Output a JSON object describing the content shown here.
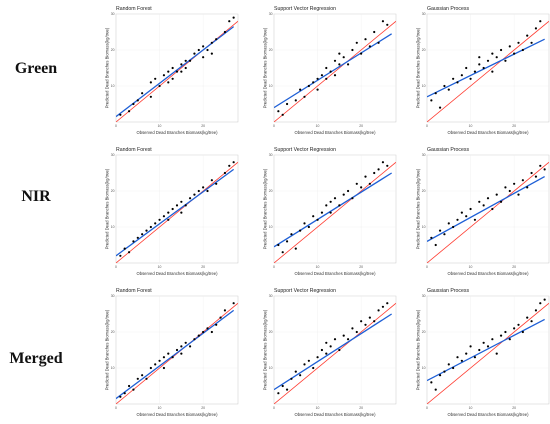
{
  "row_labels": [
    "Green",
    "NIR",
    "Merged"
  ],
  "colors": {
    "one_to_one_line": "#ff3b30",
    "fit_line": "#1e5fd6",
    "points": "#000000",
    "panel_background": "#ffffff"
  },
  "chart_data": [
    {
      "type": "scatter",
      "row": "Green",
      "title": "Random Forest",
      "xlabel": "Observed Dead Branches Biomass(kg/tree)",
      "ylabel": "Predicted Dead Branches Biomass(kg/tree)",
      "xticks": [
        "0",
        "10",
        "20"
      ],
      "yticks": [
        "10",
        "20",
        "30"
      ],
      "xlim": [
        0,
        28
      ],
      "ylim": [
        0,
        30
      ],
      "points": [
        [
          1,
          2
        ],
        [
          3,
          3
        ],
        [
          4,
          5
        ],
        [
          5,
          6
        ],
        [
          6,
          8
        ],
        [
          8,
          7
        ],
        [
          8,
          11
        ],
        [
          9,
          12
        ],
        [
          10,
          10
        ],
        [
          11,
          13
        ],
        [
          12,
          11
        ],
        [
          12,
          14
        ],
        [
          13,
          12
        ],
        [
          13,
          15
        ],
        [
          14,
          14
        ],
        [
          15,
          16
        ],
        [
          15,
          14
        ],
        [
          16,
          17
        ],
        [
          16,
          15
        ],
        [
          17,
          17
        ],
        [
          18,
          19
        ],
        [
          19,
          20
        ],
        [
          20,
          18
        ],
        [
          20,
          21
        ],
        [
          21,
          20
        ],
        [
          22,
          22
        ],
        [
          22,
          19
        ],
        [
          23,
          23
        ],
        [
          25,
          25
        ],
        [
          26,
          28
        ],
        [
          27,
          29
        ]
      ],
      "fit_line": [
        [
          0,
          1.5
        ],
        [
          27,
          26.5
        ]
      ],
      "one_to_one": [
        [
          0,
          0
        ],
        [
          28,
          28
        ]
      ]
    },
    {
      "type": "scatter",
      "row": "Green",
      "title": "Support Vector Regression",
      "xlabel": "Observed Dead Branches Biomass(kg/tree)",
      "ylabel": "Predicted Dead Branches Biomass(kg/tree)",
      "xticks": [
        "0",
        "10",
        "20"
      ],
      "yticks": [
        "10",
        "20",
        "30"
      ],
      "xlim": [
        0,
        28
      ],
      "ylim": [
        0,
        30
      ],
      "points": [
        [
          1,
          3
        ],
        [
          2,
          2
        ],
        [
          3,
          5
        ],
        [
          5,
          6
        ],
        [
          6,
          9
        ],
        [
          7,
          7
        ],
        [
          8,
          10
        ],
        [
          9,
          11
        ],
        [
          10,
          12
        ],
        [
          10,
          9
        ],
        [
          11,
          13
        ],
        [
          12,
          15
        ],
        [
          12,
          12
        ],
        [
          13,
          14
        ],
        [
          14,
          17
        ],
        [
          14,
          13
        ],
        [
          15,
          16
        ],
        [
          15,
          19
        ],
        [
          16,
          18
        ],
        [
          17,
          16
        ],
        [
          18,
          20
        ],
        [
          19,
          22
        ],
        [
          20,
          19
        ],
        [
          21,
          23
        ],
        [
          22,
          21
        ],
        [
          23,
          25
        ],
        [
          24,
          22
        ],
        [
          25,
          28
        ],
        [
          26,
          27
        ]
      ],
      "fit_line": [
        [
          0,
          4
        ],
        [
          27,
          24.5
        ]
      ],
      "one_to_one": [
        [
          0,
          0
        ],
        [
          28,
          28
        ]
      ]
    },
    {
      "type": "scatter",
      "row": "Green",
      "title": "Gaussian Process",
      "xlabel": "Observed Dead Branches Biomass(kg/tree)",
      "ylabel": "Predicted Dead Branches Biomass(kg/tree)",
      "xticks": [
        "0",
        "10",
        "20"
      ],
      "yticks": [
        "10",
        "20",
        "30"
      ],
      "xlim": [
        0,
        28
      ],
      "ylim": [
        0,
        30
      ],
      "points": [
        [
          1,
          6
        ],
        [
          2,
          8
        ],
        [
          3,
          4
        ],
        [
          4,
          10
        ],
        [
          5,
          9
        ],
        [
          6,
          12
        ],
        [
          7,
          11
        ],
        [
          8,
          13
        ],
        [
          9,
          15
        ],
        [
          10,
          12
        ],
        [
          11,
          14
        ],
        [
          12,
          16
        ],
        [
          12,
          18
        ],
        [
          13,
          15
        ],
        [
          14,
          17
        ],
        [
          15,
          19
        ],
        [
          15,
          14
        ],
        [
          16,
          18
        ],
        [
          17,
          20
        ],
        [
          18,
          17
        ],
        [
          19,
          21
        ],
        [
          20,
          19
        ],
        [
          21,
          22
        ],
        [
          22,
          20
        ],
        [
          23,
          24
        ],
        [
          24,
          22
        ],
        [
          25,
          26
        ],
        [
          26,
          28
        ]
      ],
      "fit_line": [
        [
          0,
          7
        ],
        [
          27,
          23
        ]
      ],
      "one_to_one": [
        [
          0,
          0
        ],
        [
          28,
          28
        ]
      ]
    },
    {
      "type": "scatter",
      "row": "NIR",
      "title": "Random Forest",
      "xlabel": "Observed Dead Branches Biomass(kg/tree)",
      "ylabel": "Predicted Dead Branches Biomass(kg/tree)",
      "xticks": [
        "0",
        "10",
        "20"
      ],
      "yticks": [
        "10",
        "20",
        "30"
      ],
      "xlim": [
        0,
        28
      ],
      "ylim": [
        0,
        30
      ],
      "points": [
        [
          1,
          2
        ],
        [
          2,
          4
        ],
        [
          3,
          3
        ],
        [
          4,
          6
        ],
        [
          5,
          7
        ],
        [
          6,
          8
        ],
        [
          7,
          9
        ],
        [
          8,
          10
        ],
        [
          9,
          11
        ],
        [
          10,
          12
        ],
        [
          11,
          13
        ],
        [
          12,
          12
        ],
        [
          12,
          14
        ],
        [
          13,
          15
        ],
        [
          14,
          16
        ],
        [
          15,
          14
        ],
        [
          15,
          17
        ],
        [
          16,
          16
        ],
        [
          17,
          18
        ],
        [
          18,
          19
        ],
        [
          19,
          20
        ],
        [
          20,
          21
        ],
        [
          21,
          20
        ],
        [
          22,
          23
        ],
        [
          23,
          22
        ],
        [
          25,
          25
        ],
        [
          26,
          27
        ],
        [
          27,
          28
        ]
      ],
      "fit_line": [
        [
          0,
          2
        ],
        [
          27,
          26
        ]
      ],
      "one_to_one": [
        [
          0,
          0
        ],
        [
          28,
          28
        ]
      ]
    },
    {
      "type": "scatter",
      "row": "NIR",
      "title": "Support Vector Regression",
      "xlabel": "Observed Dead Branches Biomass(kg/tree)",
      "ylabel": "Predicted Dead Branches Biomass(kg/tree)",
      "xticks": [
        "0",
        "10",
        "20"
      ],
      "yticks": [
        "10",
        "20",
        "30"
      ],
      "xlim": [
        0,
        28
      ],
      "ylim": [
        0,
        30
      ],
      "points": [
        [
          1,
          5
        ],
        [
          2,
          3
        ],
        [
          3,
          6
        ],
        [
          4,
          8
        ],
        [
          5,
          4
        ],
        [
          6,
          9
        ],
        [
          7,
          11
        ],
        [
          8,
          10
        ],
        [
          9,
          13
        ],
        [
          10,
          12
        ],
        [
          11,
          14
        ],
        [
          12,
          16
        ],
        [
          13,
          14
        ],
        [
          13,
          17
        ],
        [
          14,
          18
        ],
        [
          15,
          16
        ],
        [
          16,
          19
        ],
        [
          17,
          20
        ],
        [
          18,
          18
        ],
        [
          19,
          22
        ],
        [
          20,
          21
        ],
        [
          21,
          24
        ],
        [
          22,
          22
        ],
        [
          23,
          25
        ],
        [
          24,
          26
        ],
        [
          25,
          28
        ],
        [
          26,
          27
        ]
      ],
      "fit_line": [
        [
          0,
          4.5
        ],
        [
          27,
          25
        ]
      ],
      "one_to_one": [
        [
          0,
          0
        ],
        [
          28,
          28
        ]
      ]
    },
    {
      "type": "scatter",
      "row": "NIR",
      "title": "Gaussian Process",
      "xlabel": "Observed Dead Branches Biomass(kg/tree)",
      "ylabel": "Predicted Dead Branches Biomass(kg/tree)",
      "xticks": [
        "0",
        "10",
        "20"
      ],
      "yticks": [
        "10",
        "20",
        "30"
      ],
      "xlim": [
        0,
        28
      ],
      "ylim": [
        0,
        30
      ],
      "points": [
        [
          1,
          7
        ],
        [
          2,
          5
        ],
        [
          3,
          9
        ],
        [
          4,
          8
        ],
        [
          5,
          11
        ],
        [
          6,
          10
        ],
        [
          7,
          12
        ],
        [
          8,
          14
        ],
        [
          9,
          13
        ],
        [
          10,
          15
        ],
        [
          11,
          12
        ],
        [
          12,
          17
        ],
        [
          13,
          16
        ],
        [
          14,
          18
        ],
        [
          15,
          15
        ],
        [
          16,
          19
        ],
        [
          17,
          17
        ],
        [
          18,
          21
        ],
        [
          19,
          20
        ],
        [
          20,
          22
        ],
        [
          21,
          19
        ],
        [
          22,
          23
        ],
        [
          23,
          21
        ],
        [
          24,
          25
        ],
        [
          25,
          24
        ],
        [
          26,
          27
        ],
        [
          27,
          26
        ]
      ],
      "fit_line": [
        [
          0,
          6
        ],
        [
          27,
          24
        ]
      ],
      "one_to_one": [
        [
          0,
          0
        ],
        [
          28,
          28
        ]
      ]
    },
    {
      "type": "scatter",
      "row": "Merged",
      "title": "Random Forest",
      "xlabel": "Observed Dead Branches Biomass(kg/tree)",
      "ylabel": "Predicted Dead Branches Biomass(kg/tree)",
      "xticks": [
        "0",
        "10",
        "20"
      ],
      "yticks": [
        "10",
        "20",
        "30"
      ],
      "xlim": [
        0,
        28
      ],
      "ylim": [
        0,
        30
      ],
      "points": [
        [
          1,
          2
        ],
        [
          2,
          3
        ],
        [
          3,
          5
        ],
        [
          4,
          4
        ],
        [
          5,
          7
        ],
        [
          6,
          8
        ],
        [
          7,
          7
        ],
        [
          8,
          10
        ],
        [
          9,
          11
        ],
        [
          10,
          12
        ],
        [
          11,
          10
        ],
        [
          11,
          13
        ],
        [
          12,
          14
        ],
        [
          13,
          13
        ],
        [
          14,
          15
        ],
        [
          15,
          16
        ],
        [
          15,
          14
        ],
        [
          16,
          17
        ],
        [
          17,
          16
        ],
        [
          18,
          18
        ],
        [
          19,
          19
        ],
        [
          20,
          20
        ],
        [
          21,
          21
        ],
        [
          22,
          20
        ],
        [
          23,
          22
        ],
        [
          24,
          24
        ],
        [
          25,
          26
        ],
        [
          27,
          28
        ]
      ],
      "fit_line": [
        [
          0,
          1.5
        ],
        [
          27,
          26
        ]
      ],
      "one_to_one": [
        [
          0,
          0
        ],
        [
          28,
          28
        ]
      ]
    },
    {
      "type": "scatter",
      "row": "Merged",
      "title": "Support Vector Regression",
      "xlabel": "Observed Dead Branches Biomass(kg/tree)",
      "ylabel": "Predicted Dead Branches Biomass(kg/tree)",
      "xticks": [
        "0",
        "10",
        "20"
      ],
      "yticks": [
        "10",
        "20",
        "30"
      ],
      "xlim": [
        0,
        28
      ],
      "ylim": [
        0,
        30
      ],
      "points": [
        [
          1,
          3
        ],
        [
          2,
          5
        ],
        [
          3,
          4
        ],
        [
          4,
          7
        ],
        [
          5,
          9
        ],
        [
          6,
          8
        ],
        [
          7,
          11
        ],
        [
          8,
          12
        ],
        [
          9,
          10
        ],
        [
          10,
          13
        ],
        [
          11,
          15
        ],
        [
          12,
          14
        ],
        [
          12,
          17
        ],
        [
          13,
          16
        ],
        [
          14,
          18
        ],
        [
          15,
          15
        ],
        [
          16,
          19
        ],
        [
          17,
          18
        ],
        [
          18,
          21
        ],
        [
          19,
          20
        ],
        [
          20,
          23
        ],
        [
          21,
          22
        ],
        [
          22,
          24
        ],
        [
          23,
          23
        ],
        [
          24,
          26
        ],
        [
          25,
          27
        ],
        [
          26,
          28
        ]
      ],
      "fit_line": [
        [
          0,
          4
        ],
        [
          27,
          25
        ]
      ],
      "one_to_one": [
        [
          0,
          0
        ],
        [
          28,
          28
        ]
      ]
    },
    {
      "type": "scatter",
      "row": "Merged",
      "title": "Gaussian Process",
      "xlabel": "Observed Dead Branches Biomass(kg/tree)",
      "ylabel": "Predicted Dead Branches Biomass(kg/tree)",
      "xticks": [
        "0",
        "10",
        "20"
      ],
      "yticks": [
        "10",
        "20",
        "30"
      ],
      "xlim": [
        0,
        28
      ],
      "ylim": [
        0,
        30
      ],
      "points": [
        [
          1,
          6
        ],
        [
          2,
          4
        ],
        [
          3,
          8
        ],
        [
          4,
          9
        ],
        [
          5,
          11
        ],
        [
          6,
          10
        ],
        [
          7,
          13
        ],
        [
          8,
          12
        ],
        [
          9,
          14
        ],
        [
          10,
          16
        ],
        [
          11,
          13
        ],
        [
          12,
          15
        ],
        [
          13,
          17
        ],
        [
          14,
          16
        ],
        [
          15,
          18
        ],
        [
          16,
          14
        ],
        [
          17,
          19
        ],
        [
          18,
          20
        ],
        [
          19,
          18
        ],
        [
          20,
          21
        ],
        [
          21,
          22
        ],
        [
          22,
          20
        ],
        [
          23,
          24
        ],
        [
          24,
          23
        ],
        [
          25,
          26
        ],
        [
          26,
          28
        ],
        [
          27,
          29
        ]
      ],
      "fit_line": [
        [
          0,
          6.5
        ],
        [
          27,
          23.5
        ]
      ],
      "one_to_one": [
        [
          0,
          0
        ],
        [
          28,
          28
        ]
      ]
    }
  ]
}
